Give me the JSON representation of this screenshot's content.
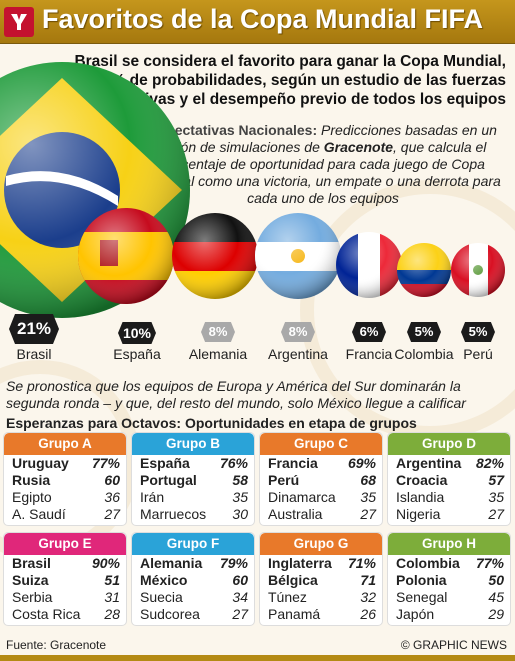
{
  "title": "Favoritos de la Copa Mundial FIFA",
  "logo_text": "Y",
  "intro": "Brasil se considera el favorito para ganar la Copa Mundial, con 21% de probabilidades, según un estudio de las fuerzas relativas y el desempeño previo de todos los equipos",
  "expect_heading": "Expectativas Nacionales:",
  "expect_text_a": " Predicciones basadas en un millón de simulaciones de ",
  "expect_brand": "Gracenote",
  "expect_text_b": ", que calcula el porcentaje de oportunidad para cada juego de Copa Mundial como una victoria, un empate o una derrota para cada uno de los equipos",
  "favorites": [
    {
      "country": "Brasil",
      "pct": "21%",
      "probability": 21
    },
    {
      "country": "España",
      "pct": "10%",
      "probability": 10
    },
    {
      "country": "Alemania",
      "pct": "8%",
      "probability": 8
    },
    {
      "country": "Argentina",
      "pct": "8%",
      "probability": 8
    },
    {
      "country": "Francia",
      "pct": "6%",
      "probability": 6
    },
    {
      "country": "Colombia",
      "pct": "5%",
      "probability": 5
    },
    {
      "country": "Perú",
      "pct": "5%",
      "probability": 5
    }
  ],
  "prediction": "Se pronostica que los equipos de Europa y América del Sur dominarán la segunda ronda – y que, del resto del mundo, solo México llegue a calificar",
  "esperanzas_heading": "Esperanzas para Octavos:",
  "esperanzas_sub": " Oportunidades en etapa de grupos",
  "groups": [
    {
      "name": "Grupo A",
      "color": "#e8792a",
      "teams": [
        {
          "team": "Uruguay",
          "value": "77%"
        },
        {
          "team": "Rusia",
          "value": "60"
        },
        {
          "team": "Egipto",
          "value": "36"
        },
        {
          "team": "A. Saudí",
          "value": "27"
        }
      ]
    },
    {
      "name": "Grupo B",
      "color": "#2aa3d8",
      "teams": [
        {
          "team": "España",
          "value": "76%"
        },
        {
          "team": "Portugal",
          "value": "58"
        },
        {
          "team": "Irán",
          "value": "35"
        },
        {
          "team": "Marruecos",
          "value": "30"
        }
      ]
    },
    {
      "name": "Grupo C",
      "color": "#e8792a",
      "teams": [
        {
          "team": "Francia",
          "value": "69%"
        },
        {
          "team": "Perú",
          "value": "68"
        },
        {
          "team": "Dinamarca",
          "value": "35"
        },
        {
          "team": "Australia",
          "value": "27"
        }
      ]
    },
    {
      "name": "Grupo D",
      "color": "#7dad3a",
      "teams": [
        {
          "team": "Argentina",
          "value": "82%"
        },
        {
          "team": "Croacia",
          "value": "57"
        },
        {
          "team": "Islandia",
          "value": "35"
        },
        {
          "team": "Nigeria",
          "value": "27"
        }
      ]
    },
    {
      "name": "Grupo E",
      "color": "#e0277a",
      "teams": [
        {
          "team": "Brasil",
          "value": "90%"
        },
        {
          "team": "Suiza",
          "value": "51"
        },
        {
          "team": "Serbia",
          "value": "31"
        },
        {
          "team": "Costa Rica",
          "value": "28"
        }
      ]
    },
    {
      "name": "Grupo F",
      "color": "#2aa3d8",
      "teams": [
        {
          "team": "Alemania",
          "value": "79%"
        },
        {
          "team": "México",
          "value": "60"
        },
        {
          "team": "Suecia",
          "value": "34"
        },
        {
          "team": "Sudcorea",
          "value": "27"
        }
      ]
    },
    {
      "name": "Grupo G",
      "color": "#e8792a",
      "teams": [
        {
          "team": "Inglaterra",
          "value": "71%"
        },
        {
          "team": "Bélgica",
          "value": "71"
        },
        {
          "team": "Túnez",
          "value": "32"
        },
        {
          "team": "Panamá",
          "value": "26"
        }
      ]
    },
    {
      "name": "Grupo H",
      "color": "#7dad3a",
      "teams": [
        {
          "team": "Colombia",
          "value": "77%"
        },
        {
          "team": "Polonia",
          "value": "50"
        },
        {
          "team": "Senegal",
          "value": "45"
        },
        {
          "team": "Japón",
          "value": "29"
        }
      ]
    }
  ],
  "source": "Fuente: Gracenote",
  "credit": "© GRAPHIC NEWS"
}
